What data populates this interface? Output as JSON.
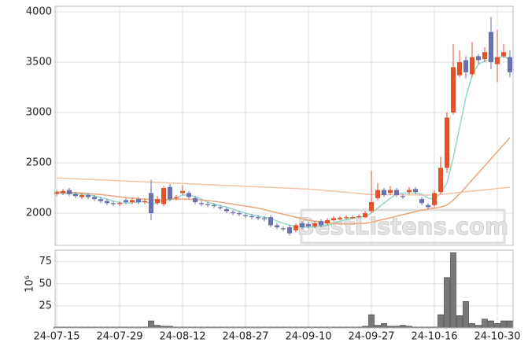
{
  "chart_data": {
    "type": "candlestick",
    "categories": [
      "24-07-15",
      null,
      null,
      null,
      null,
      null,
      null,
      null,
      null,
      null,
      "24-07-29",
      null,
      null,
      null,
      null,
      null,
      null,
      null,
      null,
      null,
      "24-08-12",
      null,
      null,
      null,
      null,
      null,
      null,
      null,
      null,
      null,
      "24-08-27",
      null,
      null,
      null,
      null,
      null,
      null,
      null,
      null,
      null,
      "24-09-10",
      null,
      null,
      null,
      null,
      null,
      null,
      null,
      null,
      null,
      "24-09-27",
      null,
      null,
      null,
      null,
      null,
      null,
      null,
      null,
      null,
      "24-10-16",
      null,
      null,
      null,
      null,
      null,
      null,
      null,
      null,
      null,
      "24-10-30",
      null,
      null
    ],
    "open": [
      2190,
      2200,
      2230,
      2190,
      2160,
      2180,
      2160,
      2140,
      2120,
      2100,
      2090,
      2130,
      2110,
      2140,
      2110,
      2200,
      2100,
      2090,
      2260,
      2150,
      2200,
      2200,
      2150,
      2100,
      2090,
      2080,
      2060,
      2040,
      2010,
      2000,
      1980,
      1970,
      1960,
      1950,
      1960,
      1880,
      1850,
      1860,
      1830,
      1900,
      1890,
      1870,
      1920,
      1900,
      1930,
      1940,
      1950,
      1950,
      1960,
      1960,
      2020,
      2150,
      2230,
      2200,
      2230,
      2170,
      2210,
      2240,
      2140,
      2080,
      2080,
      2210,
      2450,
      3000,
      3370,
      3520,
      3380,
      3560,
      3530,
      3800,
      3480,
      3560,
      3550
    ],
    "high": [
      2230,
      2240,
      2250,
      2210,
      2200,
      2200,
      2180,
      2160,
      2140,
      2120,
      2120,
      2150,
      2150,
      2160,
      2140,
      2330,
      2170,
      2270,
      2290,
      2180,
      2280,
      2220,
      2170,
      2120,
      2110,
      2100,
      2080,
      2060,
      2030,
      2020,
      2000,
      1990,
      1980,
      1970,
      1980,
      1900,
      1870,
      1880,
      1900,
      1920,
      1910,
      1920,
      1940,
      1950,
      1970,
      1970,
      1980,
      1980,
      1990,
      2020,
      2420,
      2300,
      2250,
      2270,
      2250,
      2190,
      2260,
      2260,
      2160,
      2100,
      2230,
      2560,
      3000,
      3680,
      3620,
      3560,
      3700,
      3580,
      3650,
      3950,
      3820,
      3680,
      3620
    ],
    "low": [
      2170,
      2180,
      2170,
      2150,
      2140,
      2140,
      2120,
      2100,
      2080,
      2070,
      2070,
      2090,
      2090,
      2090,
      2090,
      1930,
      2080,
      2070,
      2120,
      2130,
      2180,
      2140,
      2090,
      2070,
      2060,
      2050,
      2030,
      2000,
      1980,
      1970,
      1950,
      1940,
      1930,
      1920,
      1860,
      1840,
      1820,
      1780,
      1810,
      1840,
      1850,
      1850,
      1860,
      1880,
      1920,
      1930,
      1940,
      1940,
      1950,
      1950,
      2000,
      2130,
      2160,
      2180,
      2160,
      2140,
      2190,
      2190,
      2080,
      2040,
      2060,
      2190,
      2400,
      2980,
      3350,
      3340,
      3350,
      3480,
      3500,
      3430,
      3300,
      3540,
      3350
    ],
    "close": [
      2210,
      2220,
      2190,
      2170,
      2180,
      2160,
      2140,
      2120,
      2100,
      2090,
      2100,
      2110,
      2130,
      2110,
      2120,
      2000,
      2140,
      2250,
      2140,
      2160,
      2220,
      2160,
      2110,
      2090,
      2080,
      2070,
      2050,
      2020,
      2000,
      1990,
      1970,
      1960,
      1950,
      1940,
      1880,
      1860,
      1840,
      1800,
      1880,
      1860,
      1870,
      1900,
      1880,
      1930,
      1950,
      1955,
      1960,
      1960,
      1970,
      2000,
      2110,
      2230,
      2180,
      2230,
      2180,
      2160,
      2230,
      2210,
      2100,
      2060,
      2200,
      2450,
      2950,
      3450,
      3500,
      3400,
      3550,
      3520,
      3600,
      3500,
      3550,
      3600,
      3400
    ],
    "up_color": "#e0522a",
    "down_color": "#6a6fae",
    "ma_lines": [
      {
        "color": "#8fd8c8",
        "values": [
          2200,
          2195,
          2195,
          2190,
          2190,
          2185,
          2170,
          2155,
          2140,
          2120,
          2105,
          2100,
          2105,
          2110,
          2115,
          2095,
          2100,
          2130,
          2130,
          2150,
          2180,
          2180,
          2165,
          2140,
          2110,
          2090,
          2075,
          2060,
          2040,
          2020,
          2000,
          1985,
          1970,
          1960,
          1950,
          1920,
          1900,
          1880,
          1870,
          1860,
          1860,
          1865,
          1875,
          1880,
          1900,
          1920,
          1935,
          1950,
          1960,
          1965,
          2000,
          2050,
          2100,
          2150,
          2190,
          2200,
          2200,
          2200,
          2190,
          2150,
          2140,
          2200,
          2300,
          2550,
          2850,
          3150,
          3370,
          3480,
          3510,
          3530,
          3540,
          3560,
          3520
        ]
      },
      {
        "color": "#eba47c",
        "values": [
          2210,
          2208,
          2206,
          2204,
          2200,
          2195,
          2190,
          2185,
          2178,
          2170,
          2162,
          2155,
          2150,
          2145,
          2140,
          2135,
          2132,
          2135,
          2140,
          2140,
          2140,
          2138,
          2135,
          2130,
          2125,
          2118,
          2110,
          2100,
          2090,
          2080,
          2070,
          2060,
          2050,
          2035,
          2020,
          2005,
          1990,
          1975,
          1960,
          1945,
          1930,
          1920,
          1912,
          1905,
          1900,
          1895,
          1895,
          1895,
          1898,
          1900,
          1910,
          1925,
          1940,
          1955,
          1970,
          1985,
          2000,
          2015,
          2030,
          2040,
          2050,
          2060,
          2080,
          2130,
          2190,
          2260,
          2330,
          2400,
          2470,
          2540,
          2610,
          2680,
          2750
        ]
      },
      {
        "color": "#f2c4a6",
        "values": [
          2350,
          2347,
          2344,
          2342,
          2339,
          2336,
          2333,
          2331,
          2328,
          2325,
          2322,
          2320,
          2317,
          2314,
          2311,
          2308,
          2306,
          2303,
          2300,
          2297,
          2295,
          2292,
          2289,
          2286,
          2284,
          2281,
          2278,
          2275,
          2272,
          2270,
          2267,
          2264,
          2261,
          2259,
          2256,
          2253,
          2250,
          2248,
          2245,
          2242,
          2240,
          2234,
          2229,
          2223,
          2218,
          2212,
          2207,
          2201,
          2196,
          2190,
          2185,
          2184,
          2184,
          2183,
          2183,
          2182,
          2182,
          2181,
          2181,
          2180,
          2180,
          2186,
          2193,
          2199,
          2206,
          2212,
          2219,
          2225,
          2232,
          2238,
          2245,
          2251,
          2258
        ]
      }
    ],
    "ylim": [
      1680,
      4055
    ],
    "yticks": [
      2000,
      2500,
      3000,
      3500,
      4000
    ],
    "volume": {
      "unit_label": "10⁶",
      "color": "#777777",
      "values": [
        1,
        1,
        1,
        1,
        1,
        1,
        1,
        1,
        1,
        1,
        1,
        1,
        1,
        1,
        1,
        8,
        3,
        2,
        2,
        1,
        1,
        1,
        1,
        1,
        1,
        1,
        1,
        1,
        1,
        1,
        1,
        1,
        1,
        1,
        1,
        1,
        1,
        1,
        1,
        1,
        1,
        1,
        1,
        1,
        1,
        1,
        1,
        1,
        1,
        2,
        15,
        3,
        5,
        2,
        2,
        3,
        2,
        1,
        1,
        1,
        1,
        15,
        57,
        85,
        14,
        30,
        5,
        3,
        10,
        8,
        5,
        8,
        8
      ],
      "ylim": [
        0,
        88
      ],
      "yticks": [
        25,
        50,
        75
      ]
    },
    "watermark": "BestListens.com",
    "grid": true
  }
}
